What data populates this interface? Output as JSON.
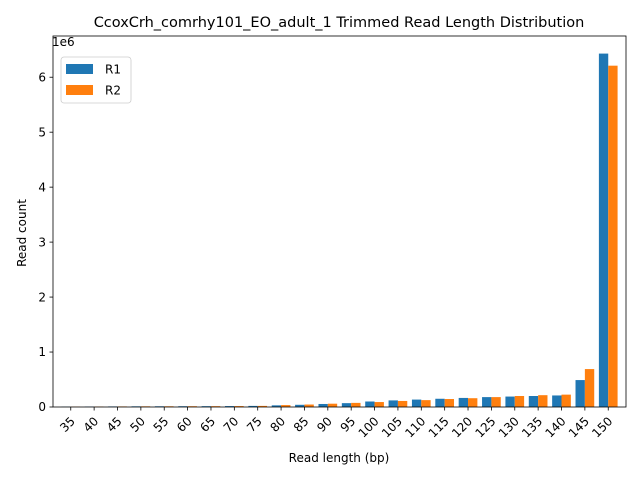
{
  "chart_data": {
    "type": "bar",
    "title": "CcoxCrh_comrhy101_EO_adult_1 Trimmed Read Length Distribution",
    "xlabel": "Read length (bp)",
    "ylabel": "Read count",
    "y_scale_label": "1e6",
    "y_multiplier": 1000000,
    "ylim": [
      0,
      6.75
    ],
    "yticks": [
      0,
      1,
      2,
      3,
      4,
      5,
      6
    ],
    "categories": [
      "35",
      "40",
      "45",
      "50",
      "55",
      "60",
      "65",
      "70",
      "75",
      "80",
      "85",
      "90",
      "95",
      "100",
      "105",
      "110",
      "115",
      "120",
      "125",
      "130",
      "135",
      "140",
      "145",
      "150"
    ],
    "series": [
      {
        "name": "R1",
        "color": "#1f77b4",
        "values": [
          0.005,
          0.007,
          0.01,
          0.012,
          0.013,
          0.014,
          0.015,
          0.017,
          0.02,
          0.03,
          0.04,
          0.055,
          0.07,
          0.1,
          0.12,
          0.135,
          0.15,
          0.165,
          0.18,
          0.19,
          0.2,
          0.21,
          0.49,
          6.43
        ]
      },
      {
        "name": "R2",
        "color": "#ff7f0e",
        "values": [
          0.005,
          0.007,
          0.01,
          0.012,
          0.013,
          0.014,
          0.015,
          0.017,
          0.02,
          0.035,
          0.045,
          0.06,
          0.075,
          0.09,
          0.11,
          0.125,
          0.145,
          0.16,
          0.18,
          0.2,
          0.215,
          0.225,
          0.69,
          6.21
        ]
      }
    ],
    "legend": "top-left",
    "grid": false
  }
}
